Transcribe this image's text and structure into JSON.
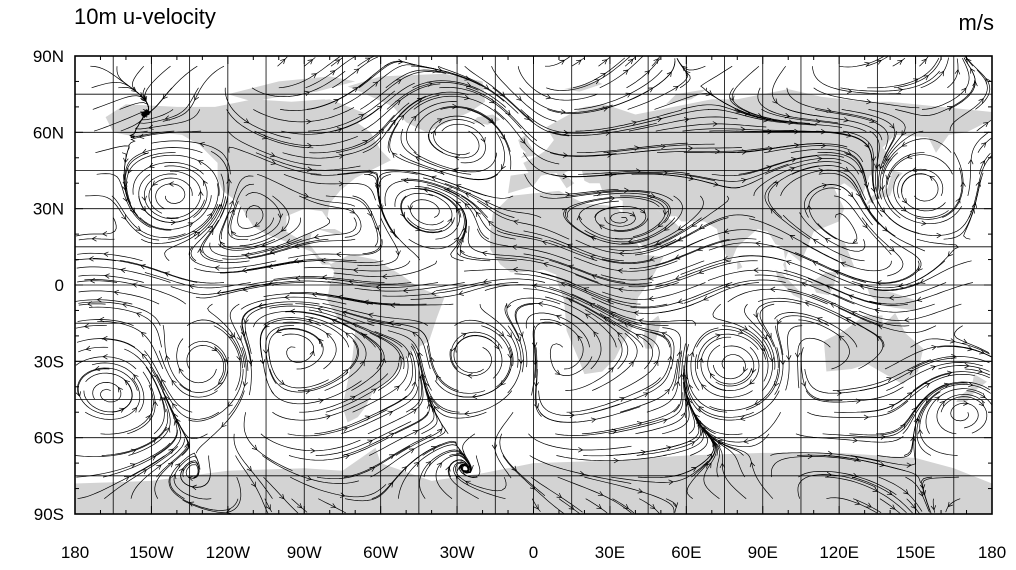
{
  "map": {
    "title": "10m u-velocity",
    "units": "m/s",
    "projection": "cylindrical-equidistant",
    "lon_range": [
      -180,
      180
    ],
    "lat_range": [
      -90,
      90
    ],
    "land_color": "#d3d3d3",
    "ocean_color": "#ffffff",
    "grid_color": "#000000",
    "streamline_color": "#000000",
    "grid_lon_step_deg": 15,
    "grid_lat_step_deg": 15,
    "lon_ticks": [
      {
        "lon": -180,
        "label": "180"
      },
      {
        "lon": -150,
        "label": "150W"
      },
      {
        "lon": -120,
        "label": "120W"
      },
      {
        "lon": -90,
        "label": "90W"
      },
      {
        "lon": -60,
        "label": "60W"
      },
      {
        "lon": -30,
        "label": "30W"
      },
      {
        "lon": 0,
        "label": "0"
      },
      {
        "lon": 30,
        "label": "30E"
      },
      {
        "lon": 60,
        "label": "60E"
      },
      {
        "lon": 90,
        "label": "90E"
      },
      {
        "lon": 120,
        "label": "120E"
      },
      {
        "lon": 150,
        "label": "150E"
      },
      {
        "lon": 180,
        "label": "180"
      }
    ],
    "lat_ticks": [
      {
        "lat": 90,
        "label": "90N"
      },
      {
        "lat": 60,
        "label": "60N"
      },
      {
        "lat": 30,
        "label": "30N"
      },
      {
        "lat": 0,
        "label": "0"
      },
      {
        "lat": -30,
        "label": "30S"
      },
      {
        "lat": -60,
        "label": "60S"
      },
      {
        "lat": -90,
        "label": "90S"
      }
    ]
  }
}
